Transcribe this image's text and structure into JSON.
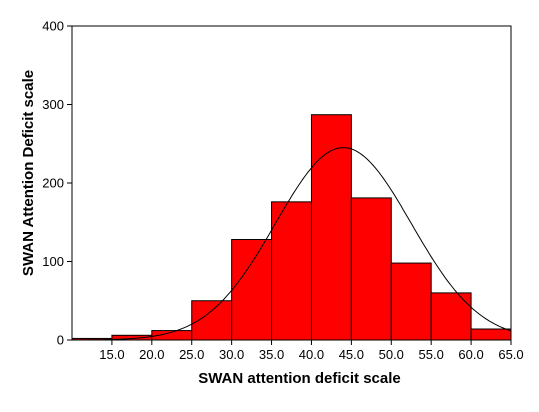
{
  "chart_data": {
    "type": "bar",
    "subtype": "histogram",
    "title": "",
    "xlabel": "SWAN attention deficit scale",
    "ylabel": "SWAN Attention Deficit scale",
    "x_tick_labels": [
      "15.0",
      "20.0",
      "25.0",
      "30.0",
      "35.0",
      "40.0",
      "45.0",
      "50.0",
      "55.0",
      "60.0",
      "65.0"
    ],
    "bin_width": 5,
    "bin_centers": [
      12.5,
      17.5,
      22.5,
      27.5,
      32.5,
      37.5,
      42.5,
      47.5,
      52.5,
      57.5,
      62.5
    ],
    "values": [
      2,
      6,
      12,
      50,
      128,
      176,
      287,
      181,
      98,
      60,
      14
    ],
    "xlim": [
      10.0,
      65.0
    ],
    "ylim": [
      0,
      400
    ],
    "y_ticks": [
      0,
      100,
      200,
      300,
      400
    ],
    "overlay": {
      "type": "normal-curve",
      "mean": 44.0,
      "sd": 8.5,
      "peak": 245
    },
    "bar_color": "#ff0000",
    "grid": false,
    "legend": "none"
  }
}
